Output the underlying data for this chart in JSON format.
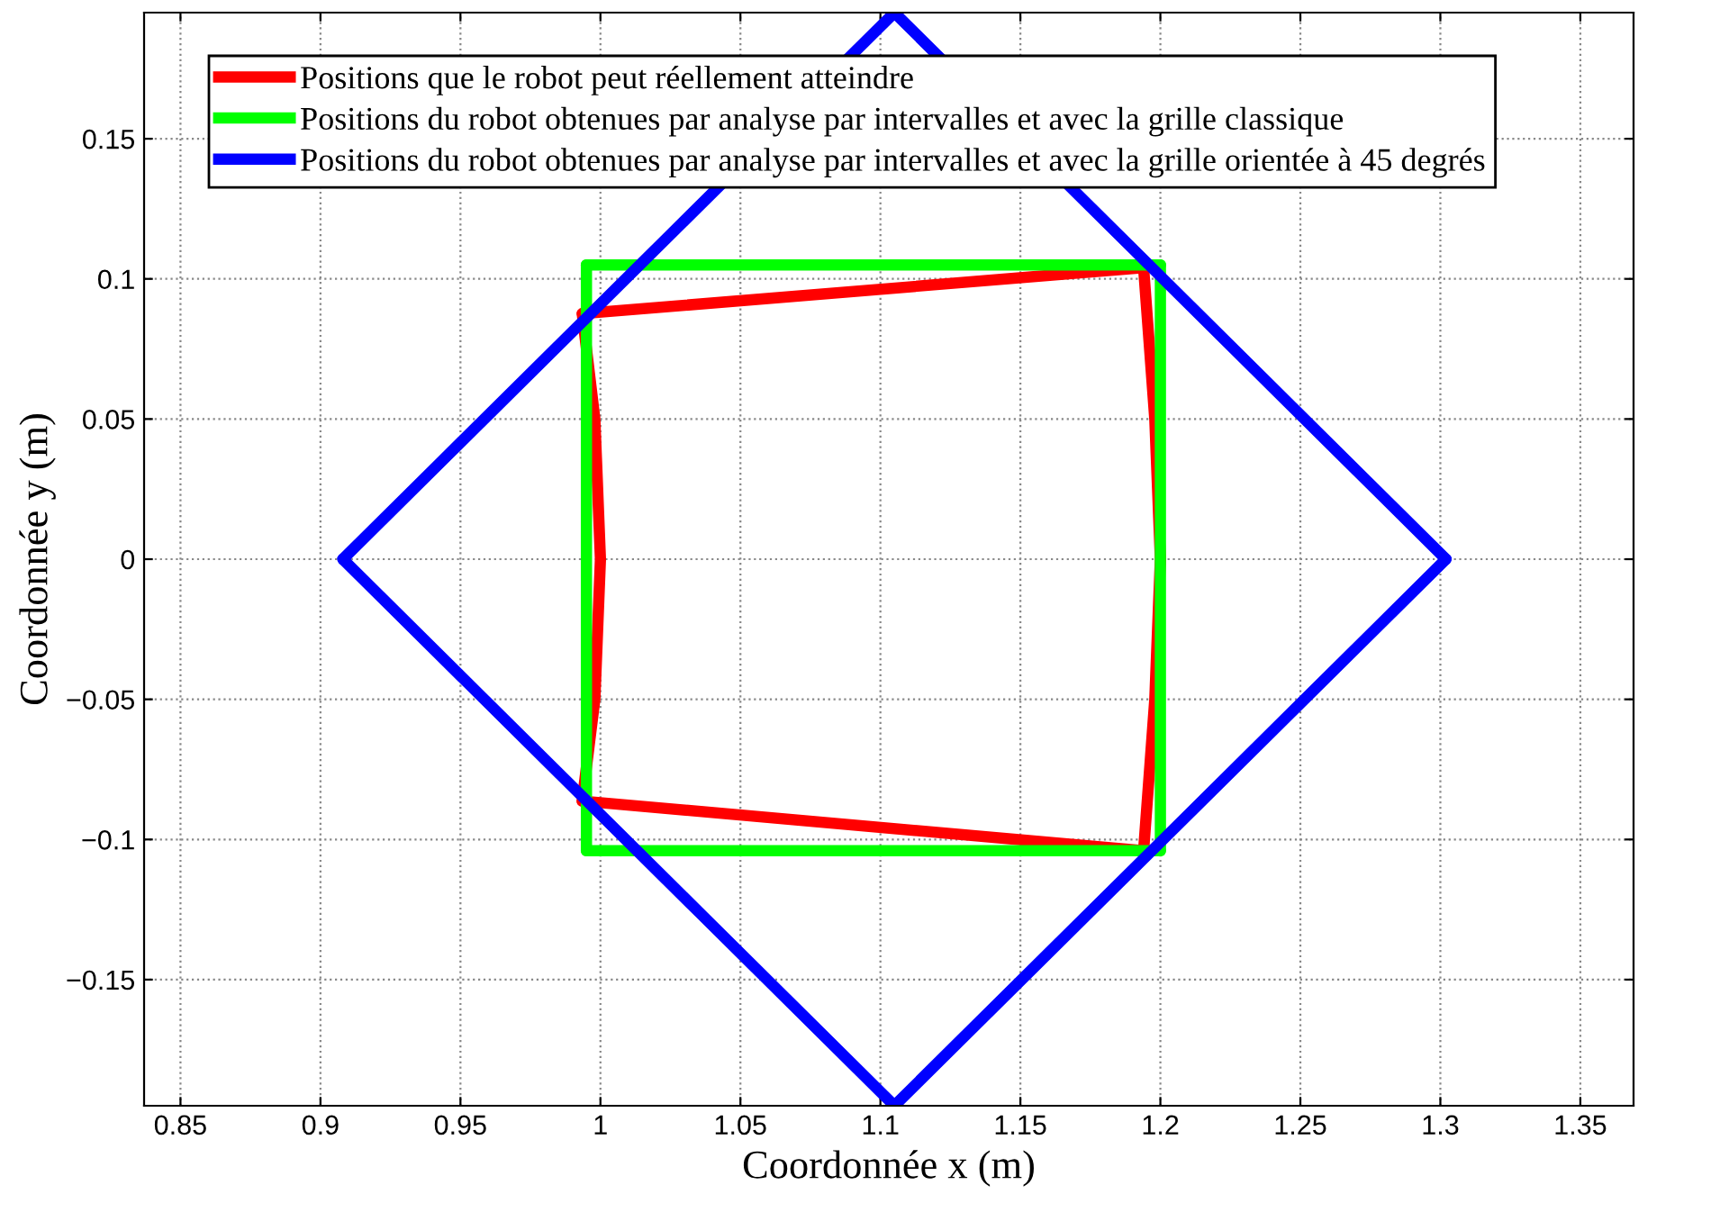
{
  "chart_data": {
    "type": "line",
    "xlabel": "Coordonnée x (m)",
    "ylabel": "Coordonnée y (m)",
    "series": [
      {
        "name": "Positions que le robot peut réellement atteindre",
        "color": "#ff0000",
        "x": [
          0.9935,
          1.194
        ],
        "values": [
          0.0876,
          0.104
        ]
      },
      {
        "color": "#ff0000",
        "x": [
          1.194,
          1.198,
          1.2,
          1.198,
          1.194
        ],
        "values": [
          0.104,
          0.05,
          0,
          -0.05,
          -0.104
        ]
      },
      {
        "color": "#ff0000",
        "x": [
          0.9935,
          1.194
        ],
        "values": [
          -0.0863,
          -0.104
        ]
      },
      {
        "color": "#ff0000",
        "x": [
          0.9935,
          0.998,
          1.0,
          0.998,
          0.9935
        ],
        "values": [
          0.0876,
          0.05,
          0,
          -0.05,
          -0.0863
        ]
      },
      {
        "name": "Positions du robot obtenues par analyse par intervalles et avec la grille classique",
        "color": "#00ff00",
        "x": [
          0.995,
          1.2
        ],
        "values": [
          0.105,
          0.105
        ]
      },
      {
        "color": "#00ff00",
        "x": [
          1.2,
          1.2
        ],
        "values": [
          0.105,
          -0.104
        ]
      },
      {
        "color": "#00ff00",
        "x": [
          0.995,
          1.2
        ],
        "values": [
          -0.104,
          -0.104
        ]
      },
      {
        "color": "#00ff00",
        "x": [
          0.995,
          0.995
        ],
        "values": [
          0.105,
          -0.104
        ]
      },
      {
        "name": "Positions du robot obtenues par analyse par intervalles et avec la grille orientée à 45 degrés",
        "color": "#0000ff",
        "x": [
          0.908,
          1.105,
          1.302
        ],
        "values": [
          0,
          0.195,
          0
        ]
      },
      {
        "color": "#0000ff",
        "x": [
          0.908,
          1.105,
          1.302
        ],
        "values": [
          0,
          -0.195,
          0
        ]
      }
    ],
    "xlim": [
      0.837,
      1.369
    ],
    "ylim": [
      -0.195,
      0.195
    ],
    "xticks": [
      0.85,
      0.9,
      0.95,
      1,
      1.05,
      1.1,
      1.15,
      1.2,
      1.25,
      1.3,
      1.35
    ],
    "yticks": [
      {
        "value": -0.15,
        "label": "−0.15"
      },
      {
        "value": -0.1,
        "label": "−0.1"
      },
      {
        "value": -0.05,
        "label": "−0.05"
      },
      0,
      0.05,
      0.1,
      0.15
    ],
    "grid": true,
    "legend": "top",
    "marker": "none",
    "line_style": "solid"
  }
}
